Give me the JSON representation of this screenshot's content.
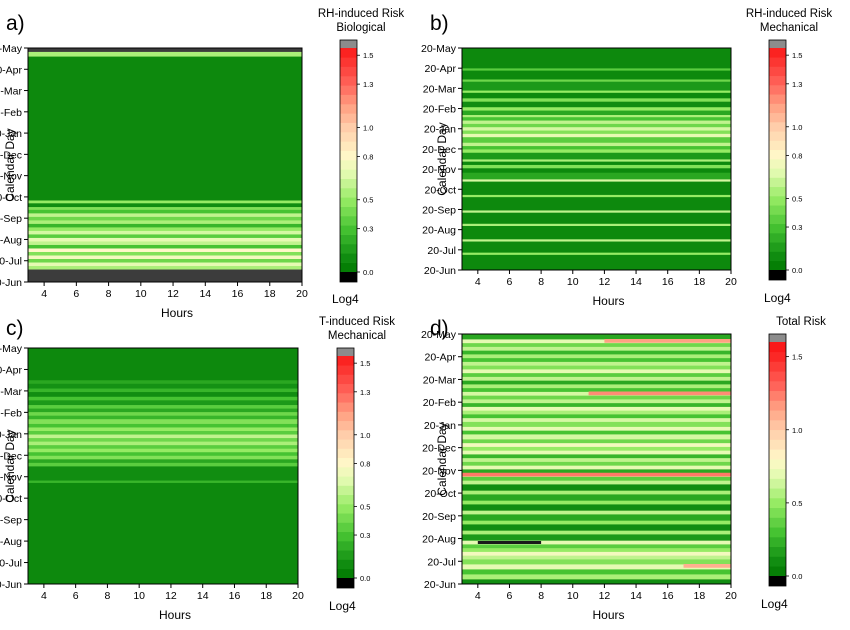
{
  "chart_data": [
    {
      "type": "heatmap",
      "panel_label": "a)",
      "colorbar_title": [
        "RH-induced Risk",
        "Biological"
      ],
      "colorbar_unit": "Log4",
      "xlabel": "Hours",
      "ylabel": "Calendar Day",
      "x_ticks": [
        "4",
        "6",
        "8",
        "10",
        "12",
        "14",
        "16",
        "18",
        "20"
      ],
      "y_ticks": [
        "20-Jun",
        "20-Jul",
        "20-Aug",
        "20-Sep",
        "20-Oct",
        "20-Nov",
        "20-Dec",
        "20-Jan",
        "20-Feb",
        "20-Mar",
        "20-Apr",
        "20-May"
      ],
      "colorbar_ticks": [
        "0.0",
        "0.3",
        "0.5",
        "0.8",
        "1.0",
        "1.3",
        "1.5"
      ],
      "xlim": [
        3,
        20
      ],
      "color_range": [
        0,
        1.55
      ],
      "rows": [
        {
          "from": 0,
          "to": 0.055,
          "value": null
        },
        {
          "from": 0.055,
          "to": 0.07,
          "value": 0.55
        },
        {
          "from": 0.07,
          "to": 0.085,
          "value": 0.7
        },
        {
          "from": 0.085,
          "to": 0.1,
          "value": 0.4
        },
        {
          "from": 0.1,
          "to": 0.115,
          "value": 0.75
        },
        {
          "from": 0.115,
          "to": 0.13,
          "value": 0.45
        },
        {
          "from": 0.13,
          "to": 0.145,
          "value": 0.8
        },
        {
          "from": 0.145,
          "to": 0.16,
          "value": 0.3
        },
        {
          "from": 0.16,
          "to": 0.175,
          "value": 0.6
        },
        {
          "from": 0.175,
          "to": 0.19,
          "value": 0.7
        },
        {
          "from": 0.19,
          "to": 0.205,
          "value": 0.35
        },
        {
          "from": 0.205,
          "to": 0.22,
          "value": 0.65
        },
        {
          "from": 0.22,
          "to": 0.235,
          "value": 0.5
        },
        {
          "from": 0.235,
          "to": 0.25,
          "value": 0.25
        },
        {
          "from": 0.25,
          "to": 0.265,
          "value": 0.55
        },
        {
          "from": 0.265,
          "to": 0.28,
          "value": 0.4
        },
        {
          "from": 0.28,
          "to": 0.295,
          "value": 0.6
        },
        {
          "from": 0.295,
          "to": 0.31,
          "value": 0.3
        },
        {
          "from": 0.31,
          "to": 0.322,
          "value": 0.45
        },
        {
          "from": 0.322,
          "to": 0.338,
          "value": 0.1
        },
        {
          "from": 0.338,
          "to": 0.35,
          "value": 0.5
        },
        {
          "from": 0.35,
          "to": 0.965,
          "value": 0.08
        },
        {
          "from": 0.965,
          "to": 0.985,
          "value": 0.55
        },
        {
          "from": 0.985,
          "to": 1.0,
          "value": null
        }
      ]
    },
    {
      "type": "heatmap",
      "panel_label": "b)",
      "colorbar_title": [
        "RH-induced Risk",
        "Mechanical"
      ],
      "colorbar_unit": "Log4",
      "xlabel": "Hours",
      "ylabel": "Calendar Day",
      "x_ticks": [
        "4",
        "6",
        "8",
        "10",
        "12",
        "14",
        "16",
        "18",
        "20"
      ],
      "y_ticks": [
        "20-Jun",
        "20-Jul",
        "20-Aug",
        "20-Sep",
        "20-Oct",
        "20-Nov",
        "20-Dec",
        "20-Jan",
        "20-Feb",
        "20-Mar",
        "20-Apr",
        "20-May"
      ],
      "colorbar_ticks": [
        "0.0",
        "0.3",
        "0.5",
        "0.8",
        "1.0",
        "1.3",
        "1.5"
      ],
      "xlim": [
        3,
        20
      ],
      "color_range": [
        0,
        1.55
      ],
      "rows": [
        {
          "from": 0.0,
          "to": 0.07,
          "value": 0.08
        },
        {
          "from": 0.07,
          "to": 0.08,
          "value": 0.5
        },
        {
          "from": 0.08,
          "to": 0.13,
          "value": 0.08
        },
        {
          "from": 0.13,
          "to": 0.14,
          "value": 0.6
        },
        {
          "from": 0.14,
          "to": 0.2,
          "value": 0.08
        },
        {
          "from": 0.2,
          "to": 0.21,
          "value": 0.55
        },
        {
          "from": 0.21,
          "to": 0.26,
          "value": 0.08
        },
        {
          "from": 0.26,
          "to": 0.27,
          "value": 0.6
        },
        {
          "from": 0.27,
          "to": 0.33,
          "value": 0.08
        },
        {
          "from": 0.33,
          "to": 0.34,
          "value": 0.5
        },
        {
          "from": 0.34,
          "to": 0.4,
          "value": 0.08
        },
        {
          "from": 0.4,
          "to": 0.41,
          "value": 0.65
        },
        {
          "from": 0.41,
          "to": 0.44,
          "value": 0.2
        },
        {
          "from": 0.44,
          "to": 0.46,
          "value": 0.08
        },
        {
          "from": 0.46,
          "to": 0.475,
          "value": 0.45
        },
        {
          "from": 0.475,
          "to": 0.49,
          "value": 0.08
        },
        {
          "from": 0.49,
          "to": 0.5,
          "value": 0.55
        },
        {
          "from": 0.5,
          "to": 0.53,
          "value": 0.15
        },
        {
          "from": 0.53,
          "to": 0.545,
          "value": 0.5
        },
        {
          "from": 0.545,
          "to": 0.56,
          "value": 0.3
        },
        {
          "from": 0.56,
          "to": 0.575,
          "value": 0.6
        },
        {
          "from": 0.575,
          "to": 0.6,
          "value": 0.35
        },
        {
          "from": 0.6,
          "to": 0.615,
          "value": 0.7
        },
        {
          "from": 0.615,
          "to": 0.63,
          "value": 0.45
        },
        {
          "from": 0.63,
          "to": 0.645,
          "value": 0.65
        },
        {
          "from": 0.645,
          "to": 0.66,
          "value": 0.4
        },
        {
          "from": 0.66,
          "to": 0.675,
          "value": 0.6
        },
        {
          "from": 0.675,
          "to": 0.69,
          "value": 0.3
        },
        {
          "from": 0.69,
          "to": 0.7,
          "value": 0.55
        },
        {
          "from": 0.7,
          "to": 0.72,
          "value": 0.2
        },
        {
          "from": 0.72,
          "to": 0.735,
          "value": 0.5
        },
        {
          "from": 0.735,
          "to": 0.76,
          "value": 0.1
        },
        {
          "from": 0.76,
          "to": 0.775,
          "value": 0.45
        },
        {
          "from": 0.775,
          "to": 0.8,
          "value": 0.08
        },
        {
          "from": 0.8,
          "to": 0.81,
          "value": 0.5
        },
        {
          "from": 0.81,
          "to": 0.85,
          "value": 0.15
        },
        {
          "from": 0.85,
          "to": 0.86,
          "value": 0.4
        },
        {
          "from": 0.86,
          "to": 0.9,
          "value": 0.08
        },
        {
          "from": 0.9,
          "to": 0.91,
          "value": 0.35
        },
        {
          "from": 0.91,
          "to": 1.0,
          "value": 0.08
        }
      ]
    },
    {
      "type": "heatmap",
      "panel_label": "c)",
      "colorbar_title": [
        "T-induced Risk",
        "Mechanical"
      ],
      "colorbar_unit": "Log4",
      "xlabel": "Hours",
      "ylabel": "Calendar Day",
      "x_ticks": [
        "4",
        "6",
        "8",
        "10",
        "12",
        "14",
        "16",
        "18",
        "20"
      ],
      "y_ticks": [
        "20-Jun",
        "20-Jul",
        "20-Aug",
        "20-Sep",
        "20-Oct",
        "20-Nov",
        "20-Dec",
        "20-Jan",
        "20-Feb",
        "20-Mar",
        "20-Apr",
        "20-May"
      ],
      "colorbar_ticks": [
        "0.0",
        "0.3",
        "0.5",
        "0.8",
        "1.0",
        "1.3",
        "1.5"
      ],
      "xlim": [
        3,
        20
      ],
      "color_range": [
        0,
        1.55
      ],
      "rows": [
        {
          "from": 0.0,
          "to": 0.43,
          "value": 0.08
        },
        {
          "from": 0.43,
          "to": 0.44,
          "value": 0.25
        },
        {
          "from": 0.44,
          "to": 0.5,
          "value": 0.1
        },
        {
          "from": 0.5,
          "to": 0.515,
          "value": 0.35
        },
        {
          "from": 0.515,
          "to": 0.53,
          "value": 0.2
        },
        {
          "from": 0.53,
          "to": 0.545,
          "value": 0.45
        },
        {
          "from": 0.545,
          "to": 0.56,
          "value": 0.3
        },
        {
          "from": 0.56,
          "to": 0.575,
          "value": 0.5
        },
        {
          "from": 0.575,
          "to": 0.59,
          "value": 0.35
        },
        {
          "from": 0.59,
          "to": 0.605,
          "value": 0.55
        },
        {
          "from": 0.605,
          "to": 0.62,
          "value": 0.4
        },
        {
          "from": 0.62,
          "to": 0.635,
          "value": 0.6
        },
        {
          "from": 0.635,
          "to": 0.65,
          "value": 0.35
        },
        {
          "from": 0.65,
          "to": 0.665,
          "value": 0.5
        },
        {
          "from": 0.665,
          "to": 0.68,
          "value": 0.3
        },
        {
          "from": 0.68,
          "to": 0.7,
          "value": 0.45
        },
        {
          "from": 0.7,
          "to": 0.715,
          "value": 0.25
        },
        {
          "from": 0.715,
          "to": 0.73,
          "value": 0.4
        },
        {
          "from": 0.73,
          "to": 0.745,
          "value": 0.2
        },
        {
          "from": 0.745,
          "to": 0.76,
          "value": 0.35
        },
        {
          "from": 0.76,
          "to": 0.78,
          "value": 0.15
        },
        {
          "from": 0.78,
          "to": 0.795,
          "value": 0.3
        },
        {
          "from": 0.795,
          "to": 0.815,
          "value": 0.1
        },
        {
          "from": 0.815,
          "to": 0.83,
          "value": 0.25
        },
        {
          "from": 0.83,
          "to": 0.85,
          "value": 0.12
        },
        {
          "from": 0.85,
          "to": 0.865,
          "value": 0.2
        },
        {
          "from": 0.865,
          "to": 1.0,
          "value": 0.08
        }
      ]
    },
    {
      "type": "heatmap",
      "panel_label": "d)",
      "colorbar_title": [
        "Total Risk"
      ],
      "colorbar_unit": "Log4",
      "xlabel": "Hours",
      "ylabel": "Calendar Day",
      "x_ticks": [
        "4",
        "6",
        "8",
        "10",
        "12",
        "14",
        "16",
        "18",
        "20"
      ],
      "y_ticks": [
        "20-Jun",
        "20-Jul",
        "20-Aug",
        "20-Sep",
        "20-Oct",
        "20-Nov",
        "20-Dec",
        "20-Jan",
        "20-Feb",
        "20-Mar",
        "20-Apr",
        "20-May"
      ],
      "colorbar_ticks": [
        "0.0",
        "0.5",
        "1.0",
        "1.5"
      ],
      "xlim": [
        3,
        20
      ],
      "color_range": [
        0,
        1.6
      ],
      "rows": [
        {
          "from": 0.0,
          "to": 0.02,
          "value": 0.1
        },
        {
          "from": 0.02,
          "to": 0.04,
          "value": 0.55
        },
        {
          "from": 0.04,
          "to": 0.06,
          "value": 0.3
        },
        {
          "from": 0.06,
          "to": 0.08,
          "value": 0.7
        },
        {
          "from": 0.08,
          "to": 0.1,
          "value": 0.45
        },
        {
          "from": 0.1,
          "to": 0.115,
          "value": 0.6
        },
        {
          "from": 0.115,
          "to": 0.13,
          "value": 0.75
        },
        {
          "from": 0.13,
          "to": 0.145,
          "value": 0.5
        },
        {
          "from": 0.145,
          "to": 0.16,
          "value": 0.35
        },
        {
          "from": 0.16,
          "to": 0.175,
          "value": 0.7
        },
        {
          "from": 0.175,
          "to": 0.2,
          "value": 0.15
        },
        {
          "from": 0.2,
          "to": 0.215,
          "value": 0.55
        },
        {
          "from": 0.215,
          "to": 0.24,
          "value": 0.1
        },
        {
          "from": 0.24,
          "to": 0.255,
          "value": 0.5
        },
        {
          "from": 0.255,
          "to": 0.28,
          "value": 0.2
        },
        {
          "from": 0.28,
          "to": 0.295,
          "value": 0.6
        },
        {
          "from": 0.295,
          "to": 0.32,
          "value": 0.1
        },
        {
          "from": 0.32,
          "to": 0.335,
          "value": 0.5
        },
        {
          "from": 0.335,
          "to": 0.36,
          "value": 0.2
        },
        {
          "from": 0.36,
          "to": 0.375,
          "value": 0.55
        },
        {
          "from": 0.375,
          "to": 0.4,
          "value": 0.1
        },
        {
          "from": 0.4,
          "to": 0.415,
          "value": 0.6
        },
        {
          "from": 0.415,
          "to": 0.43,
          "value": 0.35
        },
        {
          "from": 0.43,
          "to": 0.445,
          "value": 0.65
        },
        {
          "from": 0.445,
          "to": 0.46,
          "value": 0.2
        },
        {
          "from": 0.46,
          "to": 0.475,
          "value": 0.7
        },
        {
          "from": 0.475,
          "to": 0.49,
          "value": 0.4
        },
        {
          "from": 0.49,
          "to": 0.505,
          "value": 0.6
        },
        {
          "from": 0.505,
          "to": 0.52,
          "value": 0.25
        },
        {
          "from": 0.52,
          "to": 0.535,
          "value": 0.7
        },
        {
          "from": 0.535,
          "to": 0.55,
          "value": 0.5
        },
        {
          "from": 0.55,
          "to": 0.565,
          "value": 0.75
        },
        {
          "from": 0.565,
          "to": 0.58,
          "value": 0.4
        },
        {
          "from": 0.58,
          "to": 0.6,
          "value": 0.65
        },
        {
          "from": 0.6,
          "to": 0.615,
          "value": 0.3
        },
        {
          "from": 0.615,
          "to": 0.63,
          "value": 0.7
        },
        {
          "from": 0.63,
          "to": 0.65,
          "value": 0.45
        },
        {
          "from": 0.65,
          "to": 0.665,
          "value": 0.65
        },
        {
          "from": 0.665,
          "to": 0.68,
          "value": 0.3
        },
        {
          "from": 0.68,
          "to": 0.695,
          "value": 0.55
        },
        {
          "from": 0.695,
          "to": 0.71,
          "value": 0.7
        },
        {
          "from": 0.71,
          "to": 0.725,
          "value": 0.25
        },
        {
          "from": 0.725,
          "to": 0.74,
          "value": 0.6
        },
        {
          "from": 0.74,
          "to": 0.755,
          "value": 0.4
        },
        {
          "from": 0.755,
          "to": 0.77,
          "value": 0.65
        },
        {
          "from": 0.77,
          "to": 0.785,
          "value": 0.3
        },
        {
          "from": 0.785,
          "to": 0.8,
          "value": 0.55
        },
        {
          "from": 0.8,
          "to": 0.815,
          "value": 0.2
        },
        {
          "from": 0.815,
          "to": 0.83,
          "value": 0.6
        },
        {
          "from": 0.83,
          "to": 0.845,
          "value": 0.35
        },
        {
          "from": 0.845,
          "to": 0.86,
          "value": 0.7
        },
        {
          "from": 0.86,
          "to": 0.875,
          "value": 0.45
        },
        {
          "from": 0.875,
          "to": 0.89,
          "value": 0.6
        },
        {
          "from": 0.89,
          "to": 0.905,
          "value": 0.3
        },
        {
          "from": 0.905,
          "to": 0.92,
          "value": 0.55
        },
        {
          "from": 0.92,
          "to": 0.935,
          "value": 0.25
        },
        {
          "from": 0.935,
          "to": 0.95,
          "value": 0.6
        },
        {
          "from": 0.95,
          "to": 0.965,
          "value": 0.4
        },
        {
          "from": 0.965,
          "to": 0.98,
          "value": 0.7
        },
        {
          "from": 0.98,
          "to": 1.0,
          "value": 0.2
        }
      ],
      "highlights": [
        {
          "row_from": 0.43,
          "row_to": 0.445,
          "x_from": 3,
          "x_to": 20,
          "value": 1.25
        },
        {
          "row_from": 0.755,
          "row_to": 0.77,
          "x_from": 11,
          "x_to": 20,
          "value": 1.2
        },
        {
          "row_from": 0.965,
          "row_to": 0.98,
          "x_from": 12,
          "x_to": 20,
          "value": 1.15
        },
        {
          "row_from": 0.065,
          "row_to": 0.08,
          "x_from": 17,
          "x_to": 20,
          "value": 1.1
        },
        {
          "row_from": 0.16,
          "row_to": 0.172,
          "x_from": 4,
          "x_to": 8,
          "value": 0.0
        }
      ]
    }
  ]
}
